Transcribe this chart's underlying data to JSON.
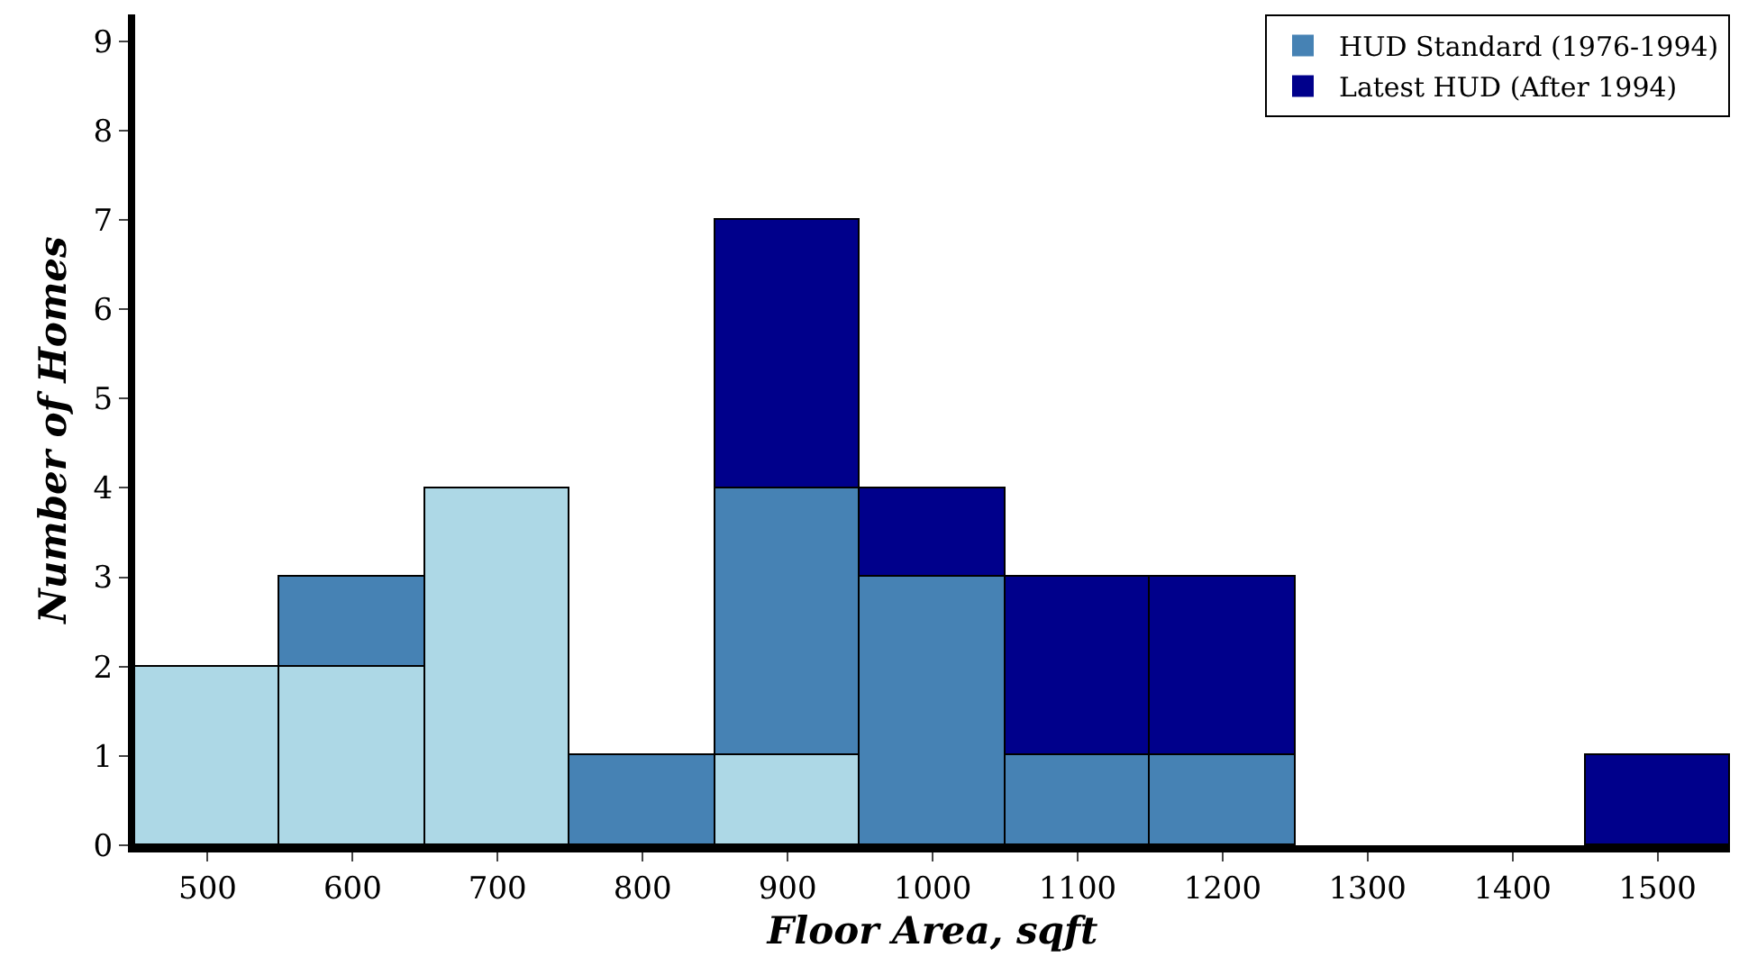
{
  "chart_data": {
    "type": "bar",
    "xlabel": "Floor Area, sqft",
    "ylabel": "Number of Homes",
    "x": [
      500,
      600,
      700,
      800,
      900,
      1000,
      1100,
      1200,
      1300,
      1400,
      1500
    ],
    "stacked": true,
    "series": [
      {
        "color": "#add8e6",
        "values": [
          2,
          2,
          4,
          0,
          1,
          0,
          0,
          0,
          0,
          0,
          0
        ]
      },
      {
        "name": "HUD Standard (1976-1994)",
        "color": "#4682b4",
        "values": [
          0,
          1,
          0,
          1,
          3,
          3,
          1,
          1,
          0,
          0,
          0
        ]
      },
      {
        "name": "Latest HUD (After 1994)",
        "color": "#00008b",
        "values": [
          0,
          0,
          0,
          0,
          3,
          1,
          2,
          2,
          0,
          0,
          1
        ]
      }
    ],
    "xlim": [
      450,
      1550
    ],
    "xticks": [
      500,
      600,
      700,
      800,
      900,
      1000,
      1100,
      1200,
      1300,
      1400,
      1500
    ],
    "ylim": [
      0,
      9.3
    ],
    "yticks": [
      0,
      1,
      2,
      3,
      4,
      5,
      6,
      7,
      8,
      9
    ],
    "grid": false,
    "legend": "top right"
  }
}
